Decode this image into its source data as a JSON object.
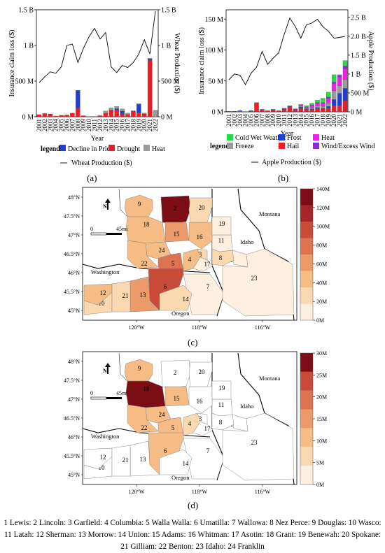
{
  "chart_data": [
    {
      "id": "a",
      "type": "bar",
      "panel_label": "(a)",
      "xlabel": "Year",
      "ylabel": "Insurance claim loss ($)",
      "y2label": "Wheat Production ($)",
      "ylim": [
        0,
        1500000000
      ],
      "y_ticks": [
        "0 M",
        "500 M",
        "1 B",
        "1.5 B"
      ],
      "y2_ticks": [
        "0 M",
        "500 M",
        "1 B",
        "1.5 B"
      ],
      "stacked": true,
      "categories": [
        "2001",
        "2002",
        "2003",
        "2004",
        "2005",
        "2006",
        "2007",
        "2008",
        "2009",
        "2010",
        "2011",
        "2012",
        "2013",
        "2014",
        "2015",
        "2016",
        "2017",
        "2018",
        "2019",
        "2020",
        "2021",
        "2022"
      ],
      "legend_title": "legend",
      "series": [
        {
          "name": "Drought",
          "color": "#ee1c24",
          "values": [
            30,
            45,
            40,
            10,
            20,
            25,
            50,
            120,
            15,
            0,
            0,
            10,
            50,
            95,
            95,
            40,
            30,
            75,
            55,
            40,
            790,
            0
          ]
        },
        {
          "name": "Decline in Price",
          "color": "#1f3fd4",
          "values": [
            0,
            0,
            0,
            0,
            0,
            0,
            0,
            250,
            0,
            0,
            0,
            0,
            0,
            0,
            20,
            40,
            0,
            0,
            120,
            0,
            20,
            0
          ]
        },
        {
          "name": "Heat",
          "color": "#9a9a9a",
          "values": [
            0,
            0,
            0,
            0,
            0,
            0,
            0,
            0,
            0,
            0,
            0,
            10,
            30,
            30,
            30,
            30,
            20,
            10,
            10,
            10,
            10,
            90
          ]
        }
      ],
      "line": {
        "name": "Wheat Production ($)",
        "values": [
          480,
          560,
          630,
          610,
          700,
          1000,
          1020,
          760,
          960,
          1120,
          1240,
          1090,
          1180,
          700,
          620,
          720,
          690,
          760,
          880,
          1080,
          880,
          1480
        ]
      }
    },
    {
      "id": "b",
      "type": "bar",
      "panel_label": "(b)",
      "xlabel": "Year",
      "ylabel": "Insurance claim loss ($)",
      "y2label": "Apple Production ($)",
      "ylim": [
        0,
        150000000
      ],
      "y_ticks": [
        "0 M",
        "50 M",
        "100 M",
        "150 M"
      ],
      "y2_ticks": [
        "0 M",
        "500 M",
        "1 B",
        "1.5 B",
        "2.0 B",
        "2.5 B"
      ],
      "stacked": true,
      "categories": [
        "2001",
        "2002",
        "2003",
        "2004",
        "2005",
        "2006",
        "2007",
        "2008",
        "2009",
        "2010",
        "2011",
        "2012",
        "2013",
        "2014",
        "2015",
        "2016",
        "2017",
        "2018",
        "2019",
        "2020",
        "2021",
        "2022"
      ],
      "legend_title": "legend",
      "series": [
        {
          "name": "Hail",
          "color": "#ee1c24",
          "values": [
            0,
            0,
            1,
            0,
            1,
            15,
            3,
            2,
            3,
            2,
            4,
            8,
            3,
            6,
            4,
            4,
            6,
            5,
            6,
            10,
            10,
            18
          ]
        },
        {
          "name": "Frost",
          "color": "#1f3fd4",
          "values": [
            1,
            1,
            1,
            0,
            1,
            0,
            1,
            0,
            1,
            0,
            1,
            1,
            1,
            2,
            1,
            1,
            1,
            1,
            3,
            10,
            20,
            20
          ]
        },
        {
          "name": "Freeze",
          "color": "#9a9a9a",
          "values": [
            0,
            0,
            0,
            0,
            0,
            0,
            0,
            0,
            0,
            0,
            0,
            0,
            0,
            2,
            1,
            2,
            3,
            3,
            5,
            14,
            12,
            14
          ]
        },
        {
          "name": "Heat",
          "color": "#f01ee8",
          "values": [
            0,
            0,
            0,
            0,
            0,
            0,
            0,
            0,
            0,
            0,
            1,
            1,
            1,
            1,
            2,
            3,
            4,
            5,
            8,
            12,
            14,
            18
          ]
        },
        {
          "name": "Wind/Excess Wind",
          "color": "#8a2be2",
          "values": [
            0,
            0,
            0,
            0,
            0,
            0,
            0,
            0,
            0,
            0,
            0,
            0,
            0,
            0,
            0,
            1,
            1,
            1,
            2,
            2,
            3,
            4
          ]
        },
        {
          "name": "Cold Wet Weather",
          "color": "#22dd44",
          "values": [
            0,
            0,
            0,
            0,
            0,
            0,
            0,
            0,
            0,
            0,
            0,
            0,
            0,
            1,
            2,
            3,
            4,
            7,
            8,
            12,
            1,
            9
          ]
        }
      ],
      "line": {
        "name": "Apple Production ($)",
        "values": [
          850,
          1000,
          970,
          720,
          1020,
          1180,
          1600,
          1260,
          1420,
          1560,
          2050,
          2480,
          2260,
          1950,
          2300,
          2350,
          2450,
          2250,
          2130,
          1950,
          1970,
          2000
        ]
      }
    }
  ],
  "maps": [
    {
      "id": "c",
      "panel_label": "(c)",
      "colorbar_ticks": [
        "0M",
        "20M",
        "40M",
        "60M",
        "80M",
        "100M",
        "120M",
        "140M"
      ],
      "colors": [
        "#fdf0e0",
        "#fbd9b0",
        "#f5bd85",
        "#eb9a6a",
        "#dc7350",
        "#c84b3a",
        "#a32628",
        "#7d0d15"
      ],
      "lat_labels": [
        "48°N",
        "47.5°N",
        "47°N",
        "46.5°N",
        "46°N",
        "45.5°N",
        "45°N"
      ],
      "lon_labels": [
        "120°W",
        "118°W",
        "116°W"
      ],
      "state_labels": {
        "washington": "Washington",
        "oregon": "Oregon",
        "idaho": "Idaho",
        "montana": "Montana"
      },
      "scale_labels": {
        "zero": "0",
        "distance": "45mi"
      },
      "north": "N"
    },
    {
      "id": "d",
      "panel_label": "(d)",
      "colorbar_ticks": [
        "0M",
        "5M",
        "10M",
        "15M",
        "20M",
        "25M",
        "30M"
      ],
      "colors": [
        "#fdf0e0",
        "#fbd9b0",
        "#f5bd85",
        "#eb9a6a",
        "#dc7350",
        "#c84b3a",
        "#7d0d15"
      ],
      "lat_labels": [
        "48°N",
        "47.5°N",
        "47°N",
        "46.5°N",
        "46°N",
        "45.5°N",
        "45°N"
      ],
      "lon_labels": [
        "120°W",
        "118°W",
        "116°W"
      ],
      "state_labels": {
        "washington": "Washington",
        "oregon": "Oregon",
        "idaho": "Idaho",
        "montana": "Montana"
      },
      "scale_labels": {
        "zero": "0",
        "distance": "45mi"
      },
      "north": "N"
    }
  ],
  "counties": [
    {
      "id": "1",
      "name": "Lewis",
      "c": 0,
      "d": 0
    },
    {
      "id": "2",
      "name": "Lincoln",
      "c": 7,
      "d": 0
    },
    {
      "id": "3",
      "name": "Garfield",
      "c": 1,
      "d": 0
    },
    {
      "id": "4",
      "name": "Columbia",
      "c": 2,
      "d": 1
    },
    {
      "id": "5",
      "name": "Walla Walla",
      "c": 4,
      "d": 2
    },
    {
      "id": "6",
      "name": "Umatilla",
      "c": 5,
      "d": 2
    },
    {
      "id": "7",
      "name": "Wallowa",
      "c": 0,
      "d": 0
    },
    {
      "id": "8",
      "name": "Nez Perce",
      "c": 1,
      "d": 0
    },
    {
      "id": "9",
      "name": "Douglas",
      "c": 2,
      "d": 2
    },
    {
      "id": "10",
      "name": "Wasco",
      "c": 1,
      "d": 0
    },
    {
      "id": "11",
      "name": "Latah",
      "c": 0,
      "d": 0
    },
    {
      "id": "12",
      "name": "Sherman",
      "c": 2,
      "d": 0
    },
    {
      "id": "13",
      "name": "Morrow",
      "c": 3,
      "d": 0
    },
    {
      "id": "14",
      "name": "Union",
      "c": 1,
      "d": 0
    },
    {
      "id": "15",
      "name": "Adams",
      "c": 3,
      "d": 2
    },
    {
      "id": "16",
      "name": "Whitman",
      "c": 2,
      "d": 0
    },
    {
      "id": "17",
      "name": "Asotin",
      "c": 0,
      "d": 0
    },
    {
      "id": "18",
      "name": "Grant",
      "c": 2,
      "d": 6
    },
    {
      "id": "19",
      "name": "Benewah",
      "c": 0,
      "d": 0
    },
    {
      "id": "20",
      "name": "Spokane",
      "c": 1,
      "d": 0
    },
    {
      "id": "21",
      "name": "Gilliam",
      "c": 1,
      "d": 0
    },
    {
      "id": "22",
      "name": "Benton",
      "c": 2,
      "d": 2
    },
    {
      "id": "23",
      "name": "Idaho",
      "c": 0,
      "d": 0
    },
    {
      "id": "24",
      "name": "Franklin",
      "c": 2,
      "d": 2
    }
  ],
  "caption": "1 Lewis: 2 Lincoln: 3 Garfield: 4 Columbia: 5 Walla Walla: 6 Umatilla: 7 Wallowa: 8 Nez Perce: 9 Douglas: 10 Wasco: 11 Latah: 12 Sherman: 13 Morrow: 14 Union: 15 Adams: 16 Whitman: 17 Asotin: 18 Grant: 19 Benewah: 20 Spokane: 21 Gilliam: 22 Benton: 23 Idaho: 24 Franklin"
}
